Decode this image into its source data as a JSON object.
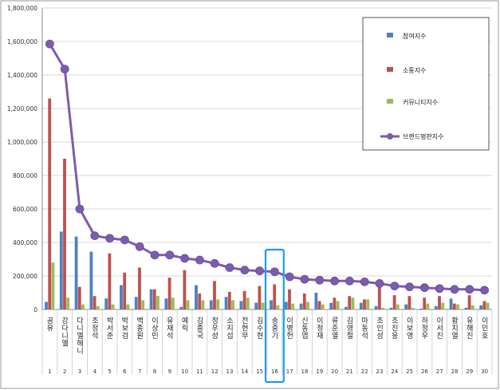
{
  "chart_data": {
    "type": "bar",
    "title": "",
    "xlabel": "",
    "ylabel": "",
    "ylim": [
      0,
      1800000
    ],
    "yticks": [
      "0",
      "200,000",
      "400,000",
      "600,000",
      "800,000",
      "1,000,000",
      "1,200,000",
      "1,400,000",
      "1,600,000",
      "1,800,000"
    ],
    "grid": true,
    "legend_position": "top-right",
    "highlight_rank": 16,
    "highlight_color": "#1f9ce8",
    "categories": [
      "공유",
      "강다니엘",
      "다니엘헤니",
      "조정석",
      "박서준",
      "박보검",
      "백종원",
      "이상민",
      "유재석",
      "예릭",
      "김종국",
      "정우성",
      "소지섭",
      "전현무",
      "김수현",
      "송중기",
      "이병헌",
      "신동엽",
      "이정재",
      "류준열",
      "김영철",
      "마동석",
      "조인성",
      "조진웅",
      "이보영",
      "하정우",
      "이서진",
      "황치열",
      "유해진",
      "이민호"
    ],
    "ranks": [
      "1",
      "2",
      "3",
      "4",
      "5",
      "6",
      "7",
      "8",
      "9",
      "10",
      "11",
      "12",
      "13",
      "14",
      "15",
      "16",
      "17",
      "18",
      "19",
      "20",
      "21",
      "22",
      "23",
      "24",
      "25",
      "26",
      "27",
      "28",
      "29",
      "30"
    ],
    "series": [
      {
        "name": "참여지수",
        "type": "bar",
        "color": "#4f81bd",
        "values": [
          45000,
          465000,
          435000,
          345000,
          65000,
          145000,
          75000,
          120000,
          65000,
          15000,
          145000,
          55000,
          75000,
          50000,
          40000,
          55000,
          45000,
          35000,
          100000,
          40000,
          15000,
          40000,
          20000,
          10000,
          30000,
          5000,
          20000,
          65000,
          10000,
          25000
        ]
      },
      {
        "name": "소통지수",
        "type": "bar",
        "color": "#c0504d",
        "values": [
          1260000,
          900000,
          135000,
          80000,
          335000,
          220000,
          250000,
          120000,
          190000,
          235000,
          95000,
          170000,
          105000,
          110000,
          140000,
          150000,
          120000,
          95000,
          50000,
          70000,
          80000,
          60000,
          140000,
          85000,
          80000,
          70000,
          80000,
          35000,
          85000,
          50000
        ]
      },
      {
        "name": "커뮤니티지수",
        "type": "bar",
        "color": "#9bbb59",
        "values": [
          280000,
          70000,
          30000,
          20000,
          30000,
          30000,
          55000,
          80000,
          70000,
          55000,
          55000,
          60000,
          55000,
          70000,
          40000,
          25000,
          35000,
          45000,
          30000,
          50000,
          70000,
          60000,
          10000,
          30000,
          10000,
          35000,
          40000,
          30000,
          25000,
          40000
        ]
      },
      {
        "name": "브랜드평판지수",
        "type": "line",
        "color": "#7c5cac",
        "values": [
          1585000,
          1435000,
          600000,
          440000,
          425000,
          415000,
          375000,
          325000,
          325000,
          305000,
          295000,
          275000,
          250000,
          235000,
          230000,
          225000,
          195000,
          180000,
          175000,
          170000,
          170000,
          165000,
          155000,
          140000,
          135000,
          130000,
          125000,
          120000,
          120000,
          115000
        ]
      }
    ]
  }
}
